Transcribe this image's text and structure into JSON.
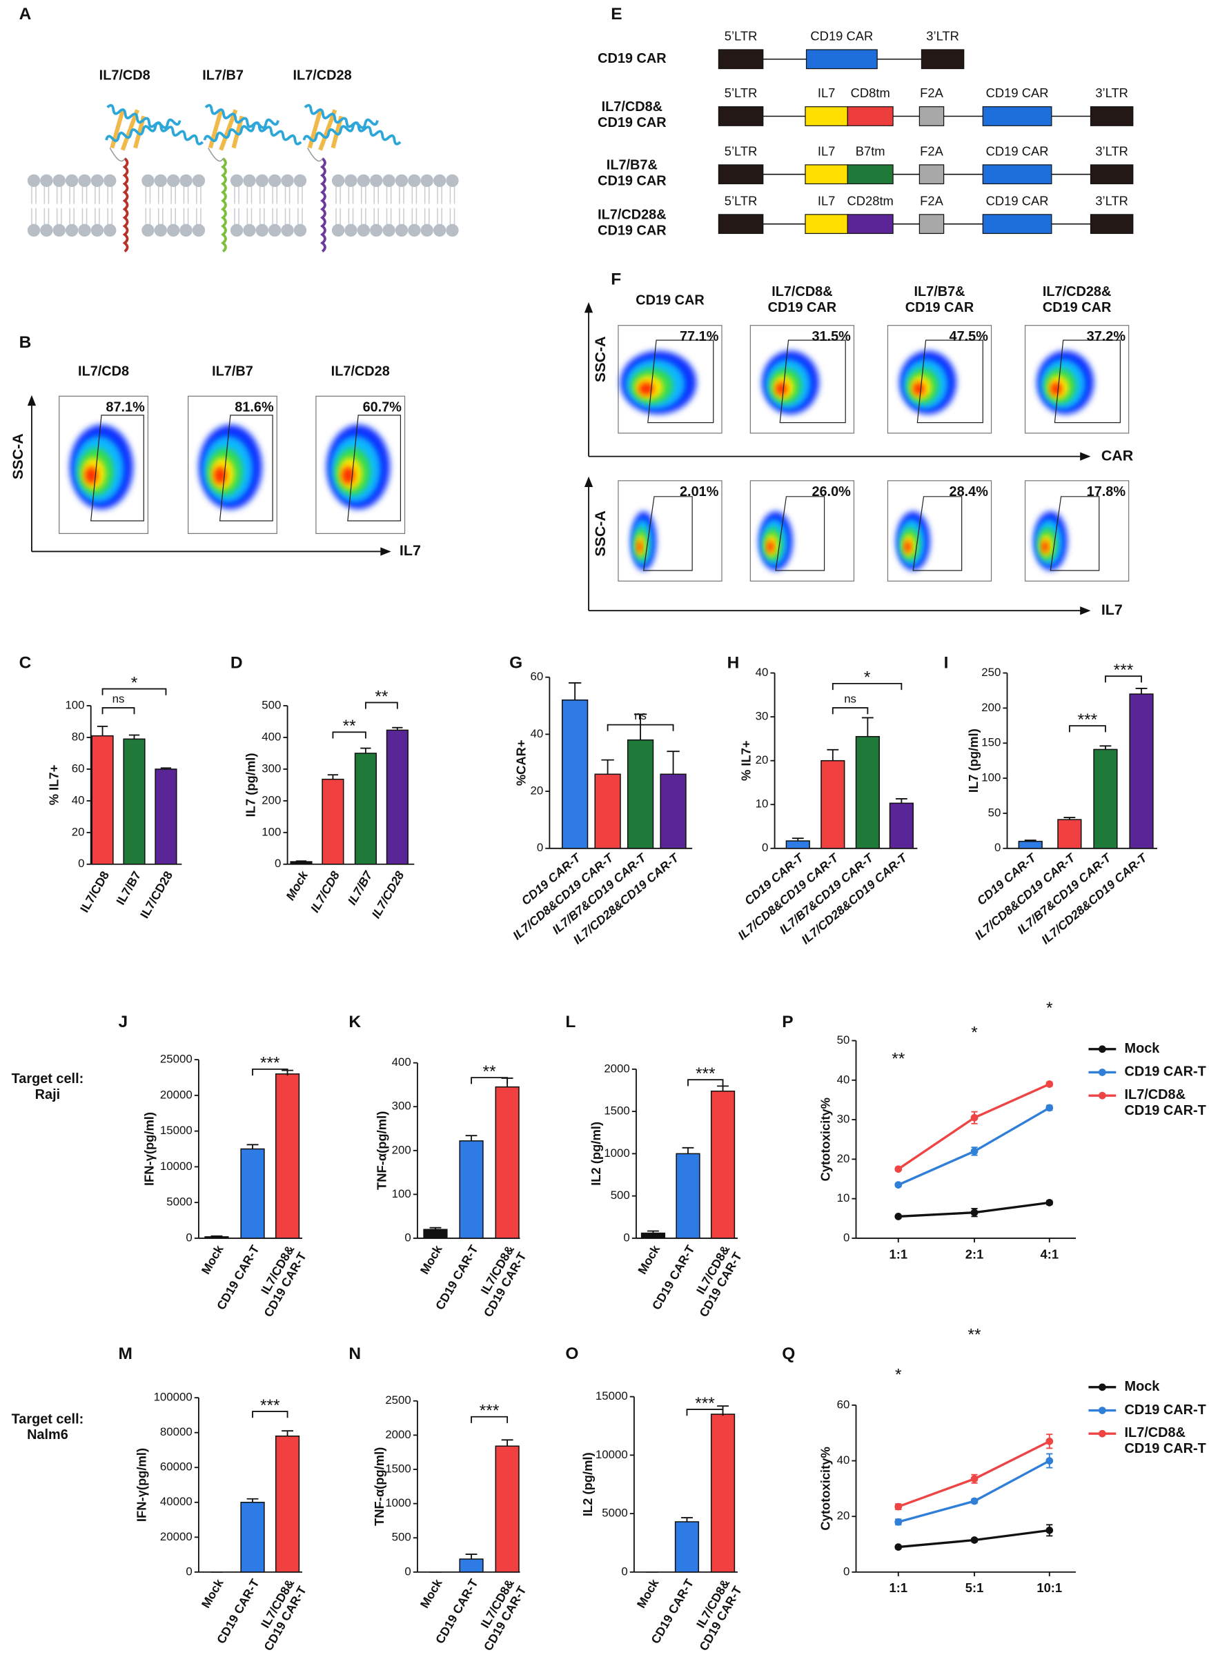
{
  "panel_A": {
    "label": "A",
    "constructs": [
      "IL7/CD8",
      "IL7/B7",
      "IL7/CD28"
    ]
  },
  "panel_B": {
    "label": "B",
    "samples": [
      "IL7/CD8",
      "IL7/B7",
      "IL7/CD28"
    ],
    "percents": [
      "87.1%",
      "81.6%",
      "60.7%"
    ],
    "y_axis": "SSC-A",
    "x_axis": "IL7"
  },
  "panel_E": {
    "label": "E",
    "rows": [
      {
        "name": "CD19 CAR",
        "segments": [
          "5’LTR",
          "CD19 CAR",
          "3’LTR"
        ]
      },
      {
        "name": "IL7/CD8&\nCD19 CAR",
        "segments": [
          "5’LTR",
          "IL7",
          "CD8tm",
          "F2A",
          "CD19 CAR",
          "3’LTR"
        ]
      },
      {
        "name": "IL7/B7&\nCD19 CAR",
        "segments": [
          "5’LTR",
          "IL7",
          "B7tm",
          "F2A",
          "CD19 CAR",
          "3’LTR"
        ]
      },
      {
        "name": "IL7/CD28&\nCD19 CAR",
        "segments": [
          "5’LTR",
          "IL7",
          "CD28tm",
          "F2A",
          "CD19 CAR",
          "3’LTR"
        ]
      }
    ]
  },
  "panel_F": {
    "label": "F",
    "samples": [
      "CD19 CAR",
      "IL7/CD8&\nCD19 CAR",
      "IL7/B7&\nCD19 CAR",
      "IL7/CD28&\nCD19 CAR"
    ],
    "rows": [
      {
        "percents": [
          "77.1%",
          "31.5%",
          "47.5%",
          "37.2%"
        ],
        "y_axis": "SSC-A",
        "x_axis": "CAR"
      },
      {
        "percents": [
          "2.01%",
          "26.0%",
          "28.4%",
          "17.8%"
        ],
        "y_axis": "SSC-A",
        "x_axis": "IL7"
      }
    ]
  },
  "target_cells": [
    "Target cell:\nRaji",
    "Target cell:\nNalm6"
  ],
  "chart_data": [
    {
      "type": "bar",
      "label": "C",
      "ylabel": "% IL7+",
      "categories": [
        "IL7/CD8",
        "IL7/B7",
        "IL7/CD28"
      ],
      "values": [
        81,
        79,
        60
      ],
      "errors": [
        6,
        2.5,
        0.7
      ],
      "colors": [
        "#f04040",
        "#1f7a3a",
        "#5a2597"
      ],
      "ylim": [
        0,
        100
      ],
      "yticks": [
        0,
        20,
        40,
        60,
        80,
        100
      ],
      "annotations": [
        "ns",
        "*"
      ]
    },
    {
      "type": "bar",
      "label": "D",
      "ylabel": "IL7 (pg/ml)",
      "categories": [
        "Mock",
        "IL7/CD8",
        "IL7/B7",
        "IL7/CD28"
      ],
      "values": [
        8,
        268,
        350,
        423
      ],
      "errors": [
        2,
        14,
        16,
        8
      ],
      "colors": [
        "#111111",
        "#f04040",
        "#1f7a3a",
        "#5a2597"
      ],
      "ylim": [
        0,
        500
      ],
      "yticks": [
        0,
        100,
        200,
        300,
        400,
        500
      ],
      "annotations": [
        "**",
        "**"
      ]
    },
    {
      "type": "bar",
      "label": "G",
      "ylabel": "%CAR+",
      "categories": [
        "CD19 CAR-T",
        "IL7/CD8&CD19 CAR-T",
        "IL7/B7&CD19 CAR-T",
        "IL7/CD28&CD19 CAR-T"
      ],
      "values": [
        52,
        26,
        38,
        26
      ],
      "errors": [
        6,
        5,
        9,
        8
      ],
      "colors": [
        "#2e7be6",
        "#f04040",
        "#1f7a3a",
        "#5a2597"
      ],
      "ylim": [
        0,
        60
      ],
      "yticks": [
        0,
        20,
        40,
        60
      ],
      "annotations": [
        "ns"
      ]
    },
    {
      "type": "bar",
      "label": "H",
      "ylabel": "% IL7+",
      "categories": [
        "CD19 CAR-T",
        "IL7/CD8&CD19 CAR-T",
        "IL7/B7&CD19 CAR-T",
        "IL7/CD28&CD19 CAR-T"
      ],
      "values": [
        1.7,
        20,
        25.5,
        10.3
      ],
      "errors": [
        0.6,
        2.5,
        4.3,
        1
      ],
      "colors": [
        "#2e7be6",
        "#f04040",
        "#1f7a3a",
        "#5a2597"
      ],
      "ylim": [
        0,
        40
      ],
      "yticks": [
        0,
        10,
        20,
        30,
        40
      ],
      "annotations": [
        "ns",
        "*"
      ]
    },
    {
      "type": "bar",
      "label": "I",
      "ylabel": "IL7 (pg/ml)",
      "categories": [
        "CD19 CAR-T",
        "IL7/CD8&CD19 CAR-T",
        "IL7/B7&CD19 CAR-T",
        "IL7/CD28&CD19 CAR-T"
      ],
      "values": [
        10,
        41,
        141,
        220
      ],
      "errors": [
        1.5,
        3,
        5,
        8
      ],
      "colors": [
        "#2e7be6",
        "#f04040",
        "#1f7a3a",
        "#5a2597"
      ],
      "ylim": [
        0,
        250
      ],
      "yticks": [
        0,
        50,
        100,
        150,
        200,
        250
      ],
      "annotations": [
        "***",
        "***"
      ]
    },
    {
      "type": "bar",
      "label": "J",
      "ylabel": "IFN-γ(pg/ml)",
      "categories": [
        "Mock",
        "CD19 CAR-T",
        "IL7/CD8&\nCD19 CAR-T"
      ],
      "values": [
        200,
        12500,
        23000
      ],
      "errors": [
        100,
        600,
        500
      ],
      "colors": [
        "#111111",
        "#2e7be6",
        "#f04040"
      ],
      "ylim": [
        0,
        25000
      ],
      "yticks": [
        0,
        5000,
        10000,
        15000,
        20000,
        25000
      ],
      "annotations": [
        "***"
      ]
    },
    {
      "type": "bar",
      "label": "K",
      "ylabel": "TNF-α(pg/ml)",
      "categories": [
        "Mock",
        "CD19 CAR-T",
        "IL7/CD8&\nCD19 CAR-T"
      ],
      "values": [
        20,
        222,
        345
      ],
      "errors": [
        4,
        12,
        20
      ],
      "colors": [
        "#111111",
        "#2e7be6",
        "#f04040"
      ],
      "ylim": [
        0,
        400
      ],
      "yticks": [
        0,
        100,
        200,
        300,
        400
      ],
      "annotations": [
        "**"
      ]
    },
    {
      "type": "bar",
      "label": "L",
      "ylabel": "IL2 (pg/ml)",
      "categories": [
        "Mock",
        "CD19 CAR-T",
        "IL7/CD8&\nCD19 CAR-T"
      ],
      "values": [
        60,
        1000,
        1740
      ],
      "errors": [
        25,
        70,
        60
      ],
      "colors": [
        "#111111",
        "#2e7be6",
        "#f04040"
      ],
      "ylim": [
        0,
        2000
      ],
      "yticks": [
        0,
        500,
        1000,
        1500,
        2000
      ],
      "annotations": [
        "***"
      ]
    },
    {
      "type": "line",
      "label": "P",
      "ylabel": "Cytotoxicity%",
      "categories": [
        "1:1",
        "2:1",
        "4:1"
      ],
      "series": [
        {
          "name": "Mock",
          "color": "#111111",
          "values": [
            5.5,
            6.5,
            9
          ],
          "errors": [
            0.3,
            1,
            0.5
          ]
        },
        {
          "name": "CD19 CAR-T",
          "color": "#2f7ed8",
          "values": [
            13.5,
            22,
            33
          ],
          "errors": [
            0.4,
            1,
            0.6
          ]
        },
        {
          "name": "IL7/CD8&\nCD19 CAR-T",
          "color": "#ee4444",
          "values": [
            17.5,
            30.5,
            39
          ],
          "errors": [
            0.4,
            1.5,
            0.5
          ]
        }
      ],
      "ylim": [
        0,
        50
      ],
      "yticks": [
        0,
        10,
        20,
        30,
        40,
        50
      ],
      "annotations": [
        "**",
        "*",
        "*"
      ]
    },
    {
      "type": "bar",
      "label": "M",
      "ylabel": "IFN-γ(pg/ml)",
      "categories": [
        "Mock",
        "CD19 CAR-T",
        "IL7/CD8&\nCD19 CAR-T"
      ],
      "values": [
        0,
        40000,
        78000
      ],
      "errors": [
        0,
        2000,
        3000
      ],
      "colors": [
        "#111111",
        "#2e7be6",
        "#f04040"
      ],
      "ylim": [
        0,
        100000
      ],
      "yticks": [
        0,
        20000,
        40000,
        60000,
        80000,
        100000
      ],
      "annotations": [
        "***"
      ]
    },
    {
      "type": "bar",
      "label": "N",
      "ylabel": "TNF-α(pg/ml)",
      "categories": [
        "Mock",
        "CD19 CAR-T",
        "IL7/CD8&\nCD19 CAR-T"
      ],
      "values": [
        0,
        190,
        1840
      ],
      "errors": [
        0,
        70,
        90
      ],
      "colors": [
        "#111111",
        "#2e7be6",
        "#f04040"
      ],
      "ylim": [
        0,
        2500
      ],
      "yticks": [
        0,
        500,
        1000,
        1500,
        2000,
        2500
      ],
      "annotations": [
        "***"
      ]
    },
    {
      "type": "bar",
      "label": "O",
      "ylabel": "IL2 (pg/ml)",
      "categories": [
        "Mock",
        "CD19 CAR-T",
        "IL7/CD8&\nCD19 CAR-T"
      ],
      "values": [
        0,
        4300,
        13500
      ],
      "errors": [
        0,
        350,
        700
      ],
      "colors": [
        "#111111",
        "#2e7be6",
        "#f04040"
      ],
      "ylim": [
        0,
        15000
      ],
      "yticks": [
        0,
        5000,
        10000,
        15000
      ],
      "annotations": [
        "***"
      ]
    },
    {
      "type": "line",
      "label": "Q",
      "ylabel": "Cytotoxicity%",
      "categories": [
        "1:1",
        "5:1",
        "10:1"
      ],
      "series": [
        {
          "name": "Mock",
          "color": "#111111",
          "values": [
            9,
            11.5,
            15
          ],
          "errors": [
            0.3,
            0.6,
            2
          ]
        },
        {
          "name": "CD19 CAR-T",
          "color": "#2f7ed8",
          "values": [
            18,
            25.5,
            40
          ],
          "errors": [
            1,
            0.8,
            2.5
          ]
        },
        {
          "name": "IL7/CD8&\nCD19 CAR-T",
          "color": "#ee4444",
          "values": [
            23.5,
            33.5,
            47
          ],
          "errors": [
            1,
            1.5,
            2.5
          ]
        }
      ],
      "ylim": [
        0,
        60
      ],
      "yticks": [
        0,
        20,
        40,
        60
      ],
      "annotations": [
        "*",
        "**"
      ]
    }
  ]
}
